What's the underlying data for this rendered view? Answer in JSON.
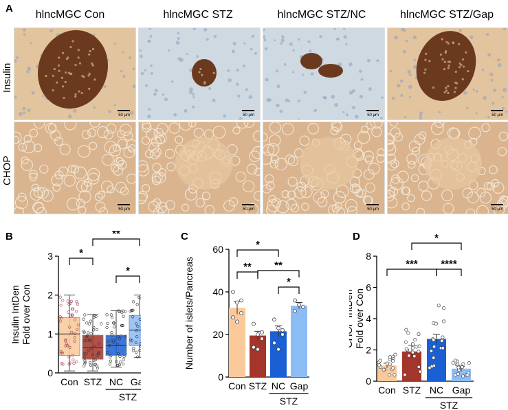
{
  "panelA": {
    "letter": "A",
    "columns": [
      "hlncMGC Con",
      "hlncMGC STZ",
      "hlncMGC STZ/NC",
      "hlncMGC STZ/Gap"
    ],
    "rows": [
      "Insulin",
      "CHOP"
    ],
    "scale_label": "50 μm",
    "colors": {
      "insulin_bg": "#cfd9e2",
      "islet": "#6b3a1e",
      "chop_bg": "#d9b48e"
    }
  },
  "panelB": {
    "letter": "B",
    "chart_data": {
      "type": "bar",
      "ylabel": "Insulin IntDen\nFold over Con",
      "ylim": [
        0,
        3
      ],
      "yticks": [
        0,
        1,
        2,
        3
      ],
      "categories": [
        "Con",
        "STZ",
        "NC",
        "Gap"
      ],
      "values": [
        1.0,
        0.65,
        0.7,
        1.1
      ],
      "q1": [
        0.45,
        0.35,
        0.45,
        0.7
      ],
      "q3": [
        1.42,
        0.97,
        0.97,
        1.48
      ],
      "whisker_min": [
        0.05,
        0.05,
        0.15,
        0.4
      ],
      "whisker_max": [
        2.0,
        1.5,
        1.6,
        2.0
      ],
      "colors": [
        "#f9c99a",
        "#a4352a",
        "#1a5fd3",
        "#8cbcf5"
      ],
      "group_label": "STZ",
      "significance": [
        {
          "from": 0,
          "to": 1,
          "label": "*"
        },
        {
          "from": 1,
          "to": 3,
          "label": "**"
        },
        {
          "from": 2,
          "to": 3,
          "label": "*"
        }
      ]
    }
  },
  "panelC": {
    "letter": "C",
    "chart_data": {
      "type": "bar",
      "ylabel": "Number of islets/Pancreas",
      "ylim": [
        0,
        60
      ],
      "yticks": [
        0,
        20,
        40,
        60
      ],
      "categories": [
        "Con",
        "STZ",
        "NC",
        "Gap"
      ],
      "values": [
        32.5,
        19.5,
        21.5,
        33.5
      ],
      "errors": [
        3.0,
        2.0,
        2.5,
        1.5
      ],
      "points": [
        [
          40,
          35,
          30,
          28,
          26,
          36
        ],
        [
          25,
          20,
          18,
          14,
          13,
          21
        ],
        [
          27,
          23,
          20,
          16,
          13,
          22
        ],
        [
          36,
          34,
          33,
          31
        ]
      ],
      "colors": [
        "#f9c99a",
        "#a4352a",
        "#1a5fd3",
        "#8cbcf5"
      ],
      "group_label": "STZ",
      "significance": [
        {
          "from": 0,
          "to": 2,
          "label": "*"
        },
        {
          "from": 0,
          "to": 1,
          "label": "**"
        },
        {
          "from": 1,
          "to": 3,
          "label": "**"
        },
        {
          "from": 2,
          "to": 3,
          "label": "*"
        }
      ]
    }
  },
  "panelD": {
    "letter": "D",
    "chart_data": {
      "type": "bar",
      "ylabel": "CHOP IntDen\nFold over Con",
      "ylim": [
        0,
        8
      ],
      "yticks": [
        0,
        2,
        4,
        6,
        8
      ],
      "categories": [
        "Con",
        "STZ",
        "NC",
        "Gap"
      ],
      "values": [
        1.0,
        1.9,
        2.7,
        0.8
      ],
      "errors": [
        0.15,
        0.4,
        0.3,
        0.15
      ],
      "colors": [
        "#f9c99a",
        "#a4352a",
        "#1a5fd3",
        "#8cbcf5"
      ],
      "group_label": "STZ",
      "significance": [
        {
          "from": 1,
          "to": 3,
          "label": "*"
        },
        {
          "from": 0,
          "to": 2,
          "label": "***"
        },
        {
          "from": 2,
          "to": 3,
          "label": "****"
        }
      ]
    }
  }
}
